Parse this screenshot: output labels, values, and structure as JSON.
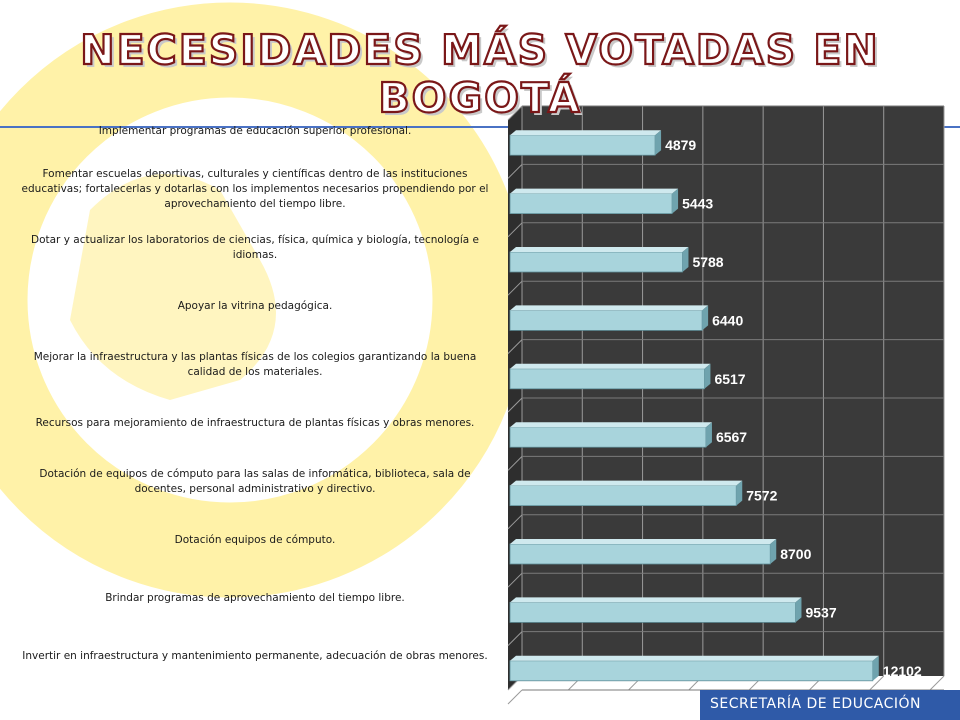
{
  "slide": {
    "title": "NECESIDADES MÁS VOTADAS EN BOGOTÁ",
    "footer": "SECRETARÍA DE EDUCACIÓN"
  },
  "colors": {
    "title_fill": "#ffffff",
    "title_outline": "#7a1718",
    "rule": "#4a72c4",
    "chart_bg": "#3a3a3a",
    "bar_face": "#a8d4dc",
    "bar_top": "#cfe9ee",
    "bar_side": "#6fa3ae",
    "value_text": "#ffffff",
    "decor_yellow": "#fff2a8",
    "footer_bar": "#2f5aa8"
  },
  "chart_data": {
    "type": "bar",
    "orientation": "horizontal",
    "style": "3d",
    "categories": [
      "Implementar programas de educación superior profesional.",
      "Fomentar escuelas deportivas, culturales y científicas dentro de las instituciones educativas; fortalecerlas y dotarlas con los implementos necesarios propendiendo por el aprovechamiento del tiempo libre.",
      "Dotar y actualizar los laboratorios de ciencias, física, química y biología, tecnología e idiomas.",
      "Apoyar la vitrina pedagógica.",
      "Mejorar la infraestructura y las plantas físicas de los colegios garantizando la buena calidad de los materiales.",
      "Recursos para mejoramiento de infraestructura de plantas físicas y obras menores.",
      "Dotación de equipos de cómputo para las salas de informática, biblioteca, sala de docentes, personal administrativo y directivo.",
      "Dotación equipos de cómputo.",
      "Brindar programas de aprovechamiento del tiempo libre.",
      "Invertir en infraestructura y mantenimiento permanente, adecuación de obras menores."
    ],
    "values": [
      4879,
      5443,
      5788,
      6440,
      6517,
      6567,
      7572,
      8700,
      9537,
      12102
    ],
    "value_labels": [
      "4879",
      "5443",
      "5788",
      "6440",
      "6517",
      "6567",
      "7572",
      "8700",
      "9537",
      "12102"
    ],
    "xlim": [
      0,
      14000
    ],
    "grid": true,
    "legend": "none"
  }
}
